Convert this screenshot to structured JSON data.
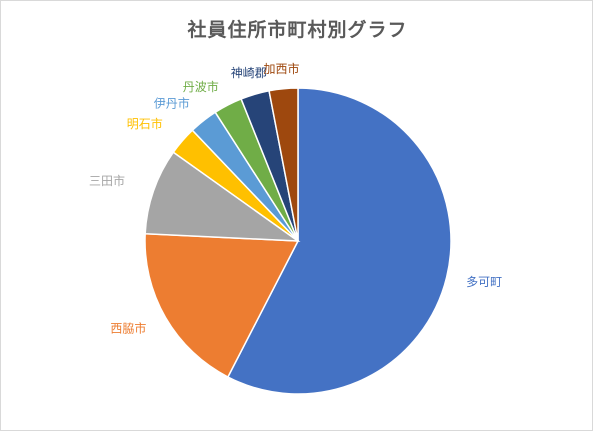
{
  "chart_data": {
    "type": "pie",
    "title": "社員住所市町村別グラフ",
    "categories": [
      "多可町",
      "西脇市",
      "三田市",
      "明石市",
      "伊丹市",
      "丹波市",
      "神崎郡",
      "加西市"
    ],
    "values": [
      57,
      18,
      9,
      3,
      3,
      3,
      3,
      3
    ],
    "colors": [
      "#4472c4",
      "#ed7d31",
      "#a5a5a5",
      "#ffc000",
      "#5b9bd5",
      "#70ad47",
      "#264478",
      "#9e480e"
    ],
    "start_angle_deg": 0,
    "direction": "clockwise",
    "legend": "none",
    "label_position": "outside"
  }
}
